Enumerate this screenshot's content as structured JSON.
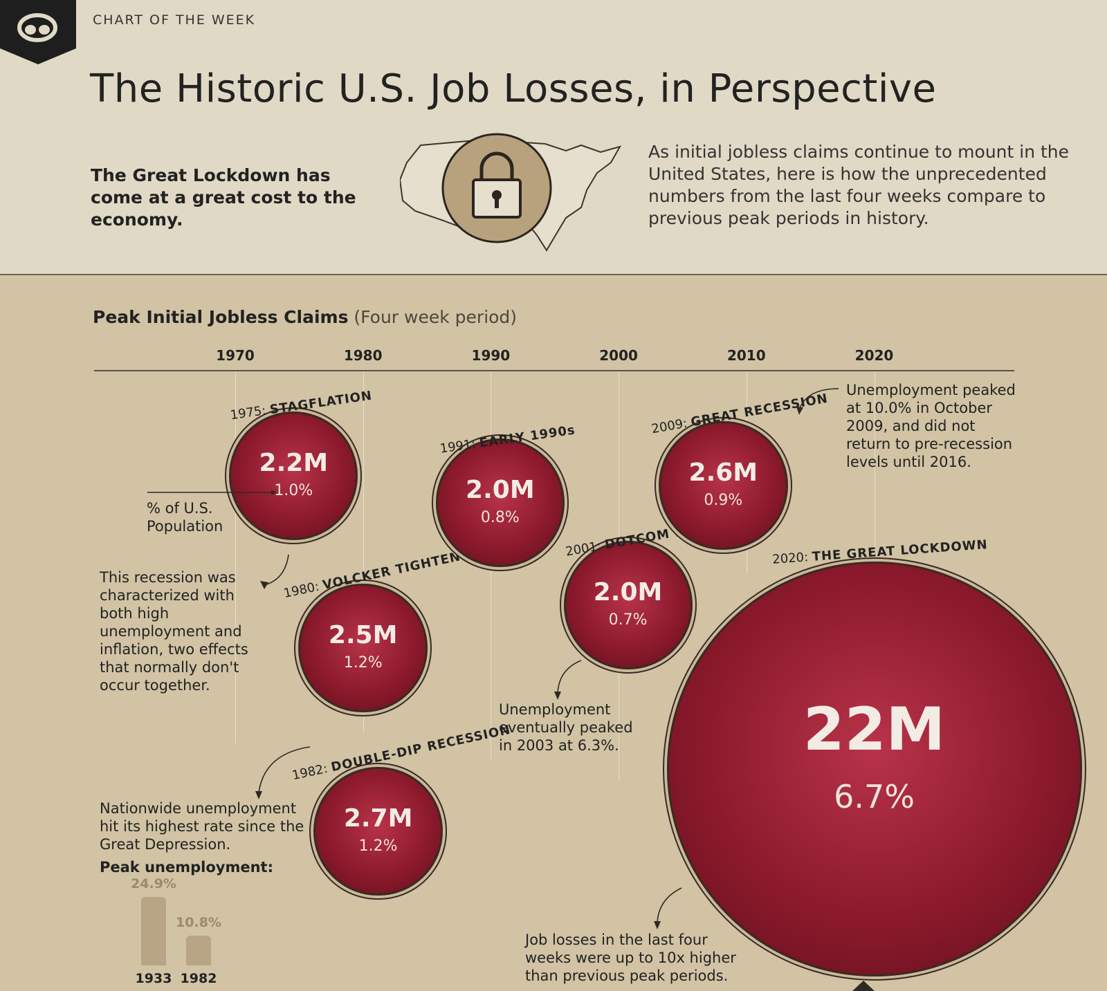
{
  "header": {
    "kicker": "CHART OF THE WEEK",
    "title": "The Historic U.S. Job Losses, in Perspective",
    "lead": "The Great Lockdown has come at a great cost to the economy.",
    "description": "As initial jobless claims continue to mount in the United States, here is how the unprecedented numbers from the last four weeks compare to previous peak periods in history."
  },
  "colors": {
    "bubble": "#8c1a2c",
    "background": "#d1c3a4",
    "header_bg": "#e0d9c5",
    "bar": "#b8a585"
  },
  "chart_data": [
    {
      "type": "scatter",
      "title": "Peak Initial Jobless Claims",
      "subtitle": "(Four week period)",
      "x_ticks": [
        "1970",
        "1980",
        "1990",
        "2000",
        "2010",
        "2020"
      ],
      "xlim": [
        1959,
        2031
      ],
      "size_encodes": "claims",
      "points": [
        {
          "year": 1975,
          "name": "STAGFLATION",
          "year_label": "1975:",
          "value": 2.2,
          "value_label": "2.2M",
          "pct_label": "1.0%"
        },
        {
          "year": 1980,
          "name": "VOLCKER TIGHTENING",
          "year_label": "1980:",
          "value": 2.5,
          "value_label": "2.5M",
          "pct_label": "1.2%"
        },
        {
          "year": 1982,
          "name": "DOUBLE-DIP RECESSION",
          "year_label": "1982:",
          "value": 2.7,
          "value_label": "2.7M",
          "pct_label": "1.2%"
        },
        {
          "year": 1991,
          "name": "EARLY 1990s",
          "year_label": "1991:",
          "value": 2.0,
          "value_label": "2.0M",
          "pct_label": "0.8%"
        },
        {
          "year": 2001,
          "name": "DOTCOM BUST",
          "year_label": "2001:",
          "value": 2.0,
          "value_label": "2.0M",
          "pct_label": "0.7%"
        },
        {
          "year": 2009,
          "name": "GREAT RECESSION",
          "year_label": "2009:",
          "value": 2.6,
          "value_label": "2.6M",
          "pct_label": "0.9%"
        },
        {
          "year": 2020,
          "name": "THE GREAT LOCKDOWN",
          "year_label": "2020:",
          "value": 22,
          "value_label": "22M",
          "pct_label": "6.7%"
        }
      ]
    },
    {
      "type": "bar",
      "title": "Peak unemployment:",
      "categories": [
        "1933",
        "1982"
      ],
      "values": [
        24.9,
        10.8
      ],
      "value_labels": [
        "24.9%",
        "10.8%"
      ]
    }
  ],
  "annotations": {
    "pop_label": "% of U.S. Population",
    "stagflation": "This recession was characterized with both high unemployment and inflation, two effects that normally don't occur together.",
    "double_dip": "Nationwide unemployment hit its highest rate since the Great Depression.",
    "dotcom": "Unemployment eventually peaked in 2003 at 6.3%.",
    "great_recession": "Unemployment peaked at 10.0% in October 2009, and did not return to pre-recession levels until 2016.",
    "lockdown": "Job losses in the last four weeks were up to 10x higher than previous peak periods."
  }
}
